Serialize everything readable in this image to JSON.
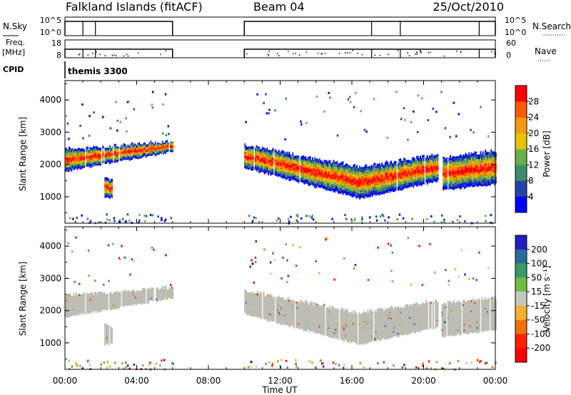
{
  "header": {
    "title": "Falkland Islands (fitACF)",
    "beam": "Beam 04",
    "date": "25/Oct/2010"
  },
  "left_labels": {
    "nsky": "N.Sky",
    "freq": "Freq.",
    "freq_unit": "[MHz]",
    "cpid": "CPID"
  },
  "right_labels": {
    "nsearch": "N.Search",
    "nave": "Nave"
  },
  "noise_ticks": {
    "top": "10^5",
    "bottom": "10^0"
  },
  "freq_ticks": {
    "top": "18",
    "bottom": "8"
  },
  "nave_ticks": {
    "top": "60",
    "bottom": "0"
  },
  "cpid_text": "themis 3300",
  "chart_data": [
    {
      "type": "heatmap",
      "panel": "power",
      "ylabel": "Slant Range [km]",
      "ylim": [
        180,
        4600
      ],
      "yticks": [
        "1000",
        "2000",
        "3000",
        "4000"
      ],
      "xlim": [
        0,
        24
      ],
      "colorbar": {
        "label": "Power [dB]",
        "ticks": [
          "4",
          "8",
          "12",
          "16",
          "20",
          "24",
          "28"
        ],
        "colors": [
          "#0000ff",
          "#2244aa",
          "#3d8a6e",
          "#6ab04c",
          "#e6c200",
          "#f59a10",
          "#ff5a00",
          "#ff0000"
        ]
      },
      "echo_bands": [
        {
          "t0": 0.0,
          "t1": 6.0,
          "lo_start": 1800,
          "lo_end": 2400,
          "hi_start": 2450,
          "hi_end": 2700
        },
        {
          "t0": 2.2,
          "t1": 2.6,
          "lo_start": 950,
          "lo_end": 1000,
          "hi_start": 1600,
          "hi_end": 1500
        },
        {
          "t0": 10.0,
          "t1": 16.4,
          "lo_start": 1900,
          "lo_end": 950,
          "hi_start": 2600,
          "hi_end": 1900
        },
        {
          "t0": 16.4,
          "t1": 20.8,
          "lo_start": 950,
          "lo_end": 1500,
          "hi_start": 1900,
          "hi_end": 2300
        },
        {
          "t0": 21.0,
          "t1": 24.0,
          "lo_start": 1200,
          "lo_end": 1400,
          "hi_start": 2200,
          "hi_end": 2400
        }
      ]
    },
    {
      "type": "heatmap",
      "panel": "velocity",
      "ylabel": "Slant Range [km]",
      "ylim": [
        180,
        4600
      ],
      "yticks": [
        "1000",
        "2000",
        "3000",
        "4000"
      ],
      "xlim": [
        0,
        24
      ],
      "colorbar": {
        "label": "Velocity [m s⁻¹]",
        "ticks": [
          "200",
          "100",
          "50",
          "15",
          "-15",
          "-50",
          "-100",
          "-200"
        ],
        "colors": [
          "#2020c0",
          "#2a6a9a",
          "#3a9a6a",
          "#6cc040",
          "#c8c8c0",
          "#f0b030",
          "#f07010",
          "#ff2000",
          "#ff0000"
        ]
      }
    }
  ],
  "xaxis": {
    "label": "Time UT",
    "ticks": [
      "00:00",
      "04:00",
      "08:00",
      "12:00",
      "16:00",
      "20:00",
      "00:00"
    ]
  },
  "colors": {
    "ground_scatter": "#bdbdb5"
  }
}
